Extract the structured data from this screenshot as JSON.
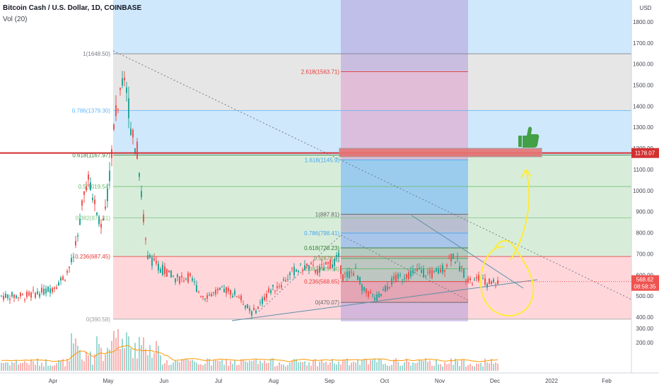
{
  "header": {
    "title": "Bitcoin Cash / U.S. Dollar, 1D, COINBASE",
    "volume_label": "Vol (20)"
  },
  "colors": {
    "up": "#26a69a",
    "down": "#ef5350",
    "fib_blue_zone": "#bbdefb",
    "fib_green_zone": "#c8e6c9",
    "fib_red_zone": "#ffcdd2",
    "resistance_line": "#d32f2f",
    "target_box": "#e57373",
    "purple_zone": "#b39ddb",
    "annotation_yellow": "#ffeb3b",
    "thumbs_green": "#43a047",
    "vol_ma": "#ff9800"
  },
  "chart_data": {
    "type": "candlestick",
    "symbol": "BCH/USD",
    "exchange": "COINBASE",
    "timeframe": "1D",
    "currency_label": "USD",
    "price_axis": {
      "ylim": [
        380,
        1870
      ],
      "ticks": [
        "1800.00",
        "1700.00",
        "1600.00",
        "1500.00",
        "1400.00",
        "1300.00",
        "1200.00",
        "1100.00",
        "1000.00",
        "900.00",
        "800.00",
        "700.00",
        "600.00",
        "500.00",
        "400.00"
      ]
    },
    "volume_axis": {
      "ticks": [
        "300.00",
        "200.00"
      ]
    },
    "time_axis": {
      "ticks": [
        "Apr",
        "May",
        "Jun",
        "Jul",
        "Aug",
        "Sep",
        "Oct",
        "Nov",
        "Dec",
        "2022",
        "Feb"
      ]
    },
    "current_price": {
      "label": "568.62",
      "countdown": "08:58:35",
      "value": 568.62
    },
    "resistance_level": {
      "label": "1178.07",
      "value": 1178.07
    },
    "fib_retracement_1": {
      "levels": [
        {
          "label": "1(1648.50)",
          "value": 1648.5
        },
        {
          "label": "0.786(1379.30)",
          "value": 1379.3
        },
        {
          "label": "0.618(1167.97)",
          "value": 1167.97
        },
        {
          "label": "0.5(1019.54)",
          "value": 1019.54
        },
        {
          "label": "0.382(871.11)",
          "value": 871.11
        },
        {
          "label": "0.236(687.45)",
          "value": 687.45
        },
        {
          "label": "0(390.58)",
          "value": 390.58
        }
      ]
    },
    "fib_retracement_2": {
      "levels": [
        {
          "label": "2.618(1563.71)",
          "value": 1563.71
        },
        {
          "label": "1.618(1145.9)",
          "value": 1145.9
        },
        {
          "label": "1(887.81)",
          "value": 887.81
        },
        {
          "label": "0.786(798.41)",
          "value": 798.41
        },
        {
          "label": "0.618(728.23)",
          "value": 728.23
        },
        {
          "label": "0.5(678.9)",
          "value": 678.9
        },
        {
          "label": "0.382(629.54)",
          "value": 629.54
        },
        {
          "label": "0.236(568.65)",
          "value": 568.65
        },
        {
          "label": "0(470.07)",
          "value": 470.07
        }
      ]
    },
    "price_series_approx": [
      [
        "Mar-15",
        500
      ],
      [
        "Mar-25",
        520
      ],
      [
        "Apr-01",
        540
      ],
      [
        "Apr-08",
        600
      ],
      [
        "Apr-12",
        680
      ],
      [
        "Apr-15",
        800
      ],
      [
        "Apr-18",
        1000
      ],
      [
        "Apr-20",
        1050
      ],
      [
        "Apr-25",
        900
      ],
      [
        "Apr-28",
        820
      ],
      [
        "May-01",
        1000
      ],
      [
        "May-04",
        1300
      ],
      [
        "May-07",
        1450
      ],
      [
        "May-10",
        1600
      ],
      [
        "May-12",
        1400
      ],
      [
        "May-14",
        1250
      ],
      [
        "May-17",
        1180
      ],
      [
        "May-19",
        950
      ],
      [
        "May-22",
        700
      ],
      [
        "May-26",
        650
      ],
      [
        "Jun-01",
        620
      ],
      [
        "Jun-08",
        580
      ],
      [
        "Jun-15",
        590
      ],
      [
        "Jun-22",
        500
      ],
      [
        "Jun-28",
        510
      ],
      [
        "Jul-05",
        530
      ],
      [
        "Jul-12",
        500
      ],
      [
        "Jul-19",
        420
      ],
      [
        "Jul-22",
        440
      ],
      [
        "Jul-28",
        520
      ],
      [
        "Aug-05",
        560
      ],
      [
        "Aug-12",
        620
      ],
      [
        "Aug-18",
        640
      ],
      [
        "Aug-25",
        620
      ],
      [
        "Sep-01",
        650
      ],
      [
        "Sep-06",
        680
      ],
      [
        "Sep-08",
        590
      ],
      [
        "Sep-15",
        620
      ],
      [
        "Sep-20",
        520
      ],
      [
        "Sep-27",
        490
      ],
      [
        "Oct-05",
        570
      ],
      [
        "Oct-12",
        600
      ],
      [
        "Oct-20",
        620
      ],
      [
        "Oct-27",
        600
      ],
      [
        "Nov-03",
        630
      ],
      [
        "Nov-08",
        700
      ],
      [
        "Nov-12",
        640
      ],
      [
        "Nov-18",
        560
      ],
      [
        "Nov-22",
        580
      ],
      [
        "Nov-26",
        560
      ],
      [
        "Nov-29",
        568.62
      ]
    ]
  }
}
